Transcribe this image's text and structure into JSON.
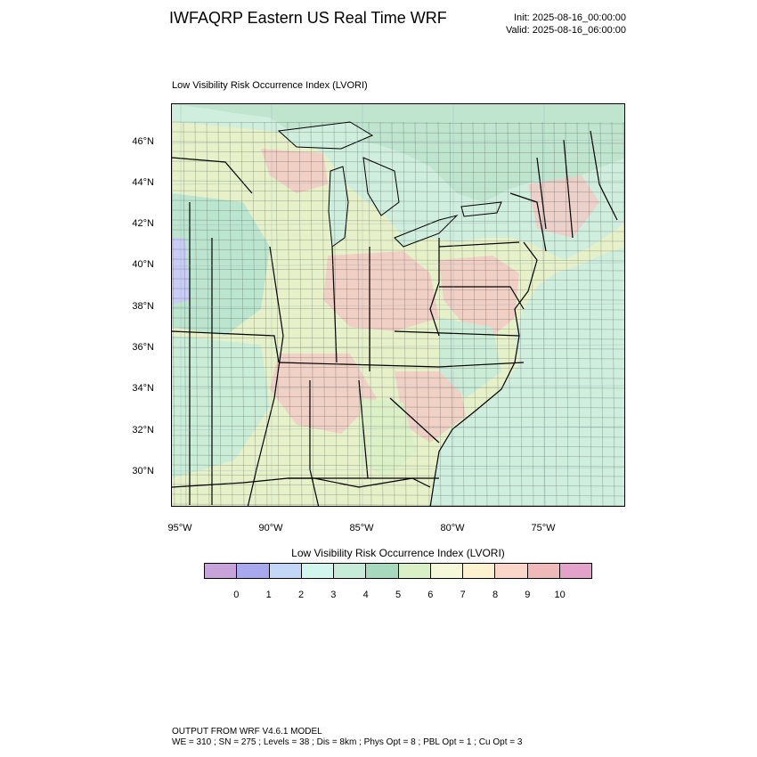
{
  "header": {
    "title": "IWFAQRP Eastern US Real Time WRF",
    "init": "Init: 2025-08-16_00:00:00",
    "valid": "Valid: 2025-08-16_06:00:00"
  },
  "panel": {
    "title": "Low Visibility Risk Occurrence Index   (LVORI)"
  },
  "map": {
    "latitude_labels": [
      "46°N",
      "44°N",
      "42°N",
      "40°N",
      "38°N",
      "36°N",
      "34°N",
      "32°N",
      "30°N"
    ],
    "longitude_labels": [
      "95°W",
      "90°W",
      "85°W",
      "80°W",
      "75°W"
    ],
    "colors": {
      "water": "#cfeedd",
      "land_low": "#b7e3cf",
      "land_mid": "#e8f3c8",
      "land_high": "#f1c9c4",
      "land_vlow": "#c9cdf6",
      "boundary": "#000000"
    }
  },
  "colorbar": {
    "title": "Low Visibility Risk Occurrence Index  (LVORI)",
    "ticks": [
      "0",
      "1",
      "2",
      "3",
      "4",
      "5",
      "6",
      "7",
      "8",
      "9",
      "10"
    ],
    "colors": [
      "#c8a3d9",
      "#a8a8ee",
      "#c4d6f6",
      "#d2f6ee",
      "#c6ecd9",
      "#a6d9bd",
      "#d9f0c7",
      "#f5f9d9",
      "#fdf2d0",
      "#f9d6c9",
      "#f0b9b9",
      "#e2a2c9"
    ]
  },
  "footer": {
    "line1": "OUTPUT FROM WRF V4.6.1 MODEL",
    "line2": "WE = 310 ; SN = 275 ; Levels = 38 ; Dis = 8km ; Phys Opt = 8 ; PBL Opt = 1 ; Cu Opt = 3"
  }
}
